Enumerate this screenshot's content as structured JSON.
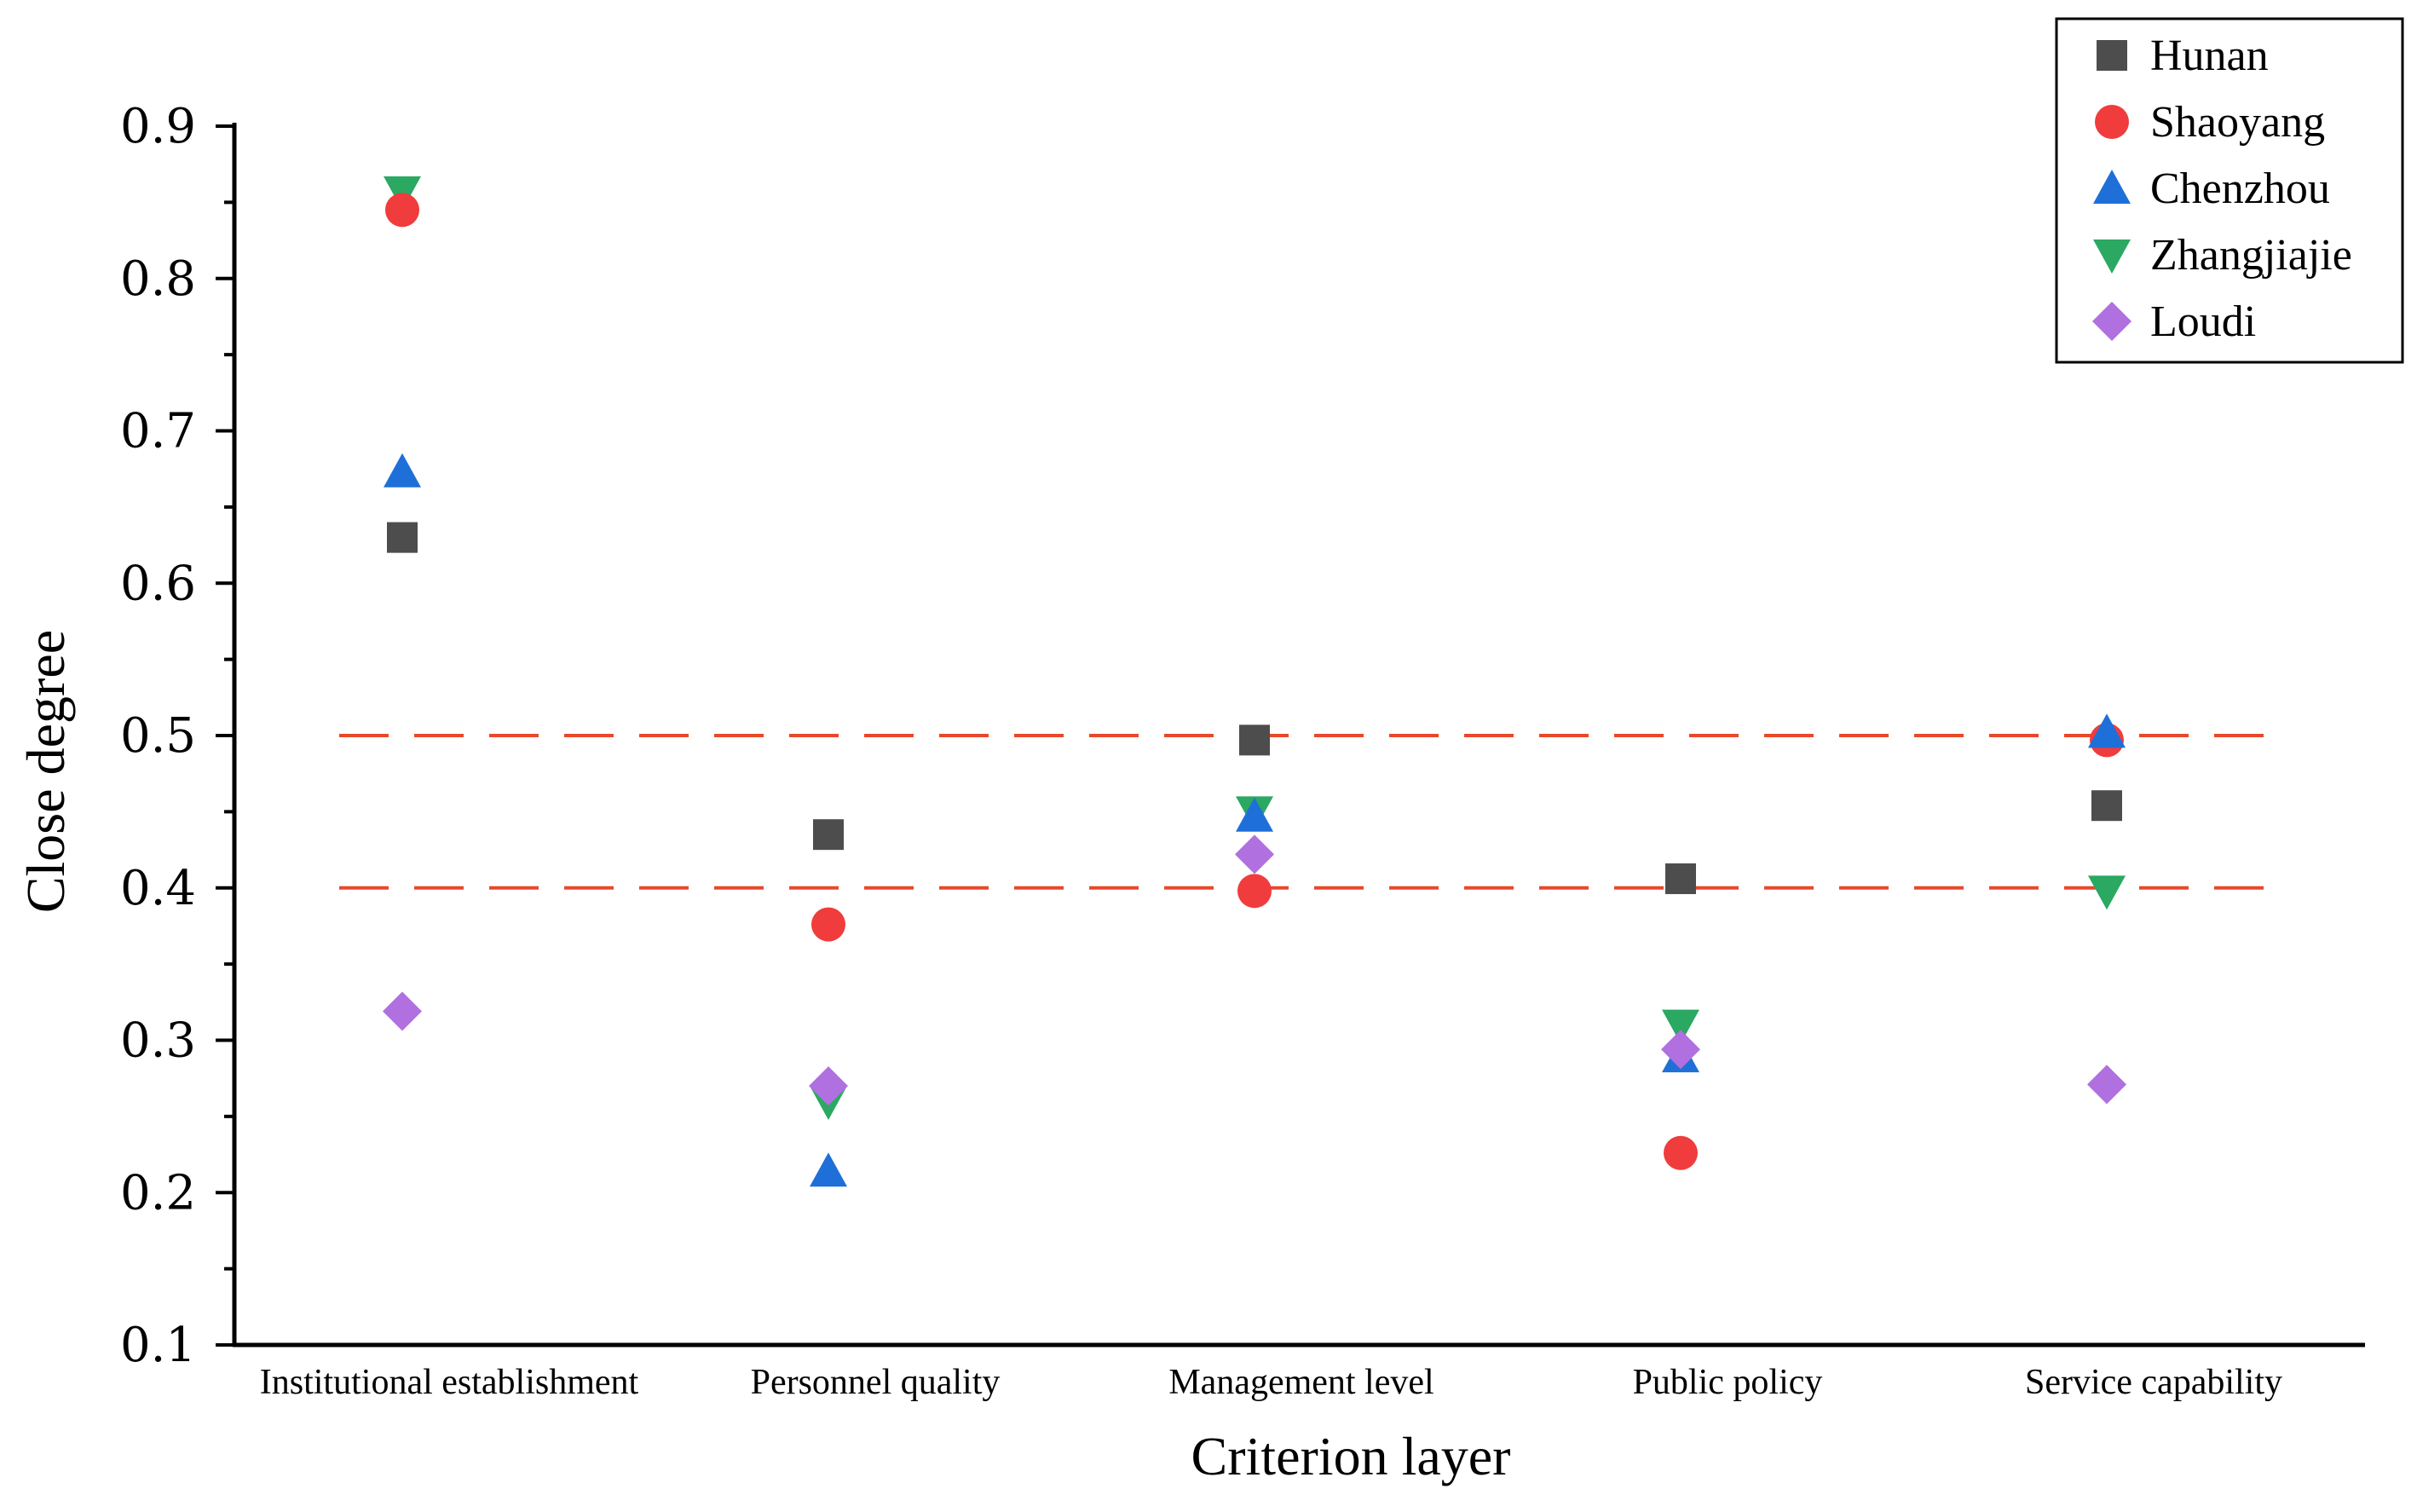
{
  "chart_data": {
    "type": "scatter",
    "xlabel": "Criterion layer",
    "ylabel": "Close degree",
    "ylim": [
      0.1,
      0.9
    ],
    "yticks": [
      "0.1",
      "0.2",
      "0.3",
      "0.4",
      "0.5",
      "0.6",
      "0.7",
      "0.8",
      "0.9"
    ],
    "categories": [
      "Institutional establishment",
      "Personnel quality",
      "Management level",
      "Public policy",
      "Service capability"
    ],
    "reference_lines": [
      0.5,
      0.4
    ],
    "reference_color": "#e8482a",
    "legend_position": "top-right",
    "series": [
      {
        "name": "Hunan",
        "marker": "square",
        "color": "#4d4d4d",
        "values": [
          0.63,
          0.435,
          0.497,
          0.406,
          0.454
        ]
      },
      {
        "name": "Shaoyang",
        "marker": "circle",
        "color": "#f03c3c",
        "values": [
          0.845,
          0.376,
          0.398,
          0.226,
          0.497
        ]
      },
      {
        "name": "Chenzhou",
        "marker": "triangle-up",
        "color": "#1f6fd9",
        "values": [
          0.673,
          0.214,
          0.447,
          0.289,
          0.502
        ]
      },
      {
        "name": "Zhangjiajie",
        "marker": "triangle-down",
        "color": "#2ba862",
        "values": [
          0.857,
          0.26,
          0.45,
          0.31,
          0.398
        ]
      },
      {
        "name": "Loudi",
        "marker": "diamond",
        "color": "#b070e0",
        "values": [
          0.319,
          0.27,
          0.422,
          0.294,
          0.271
        ]
      }
    ]
  }
}
